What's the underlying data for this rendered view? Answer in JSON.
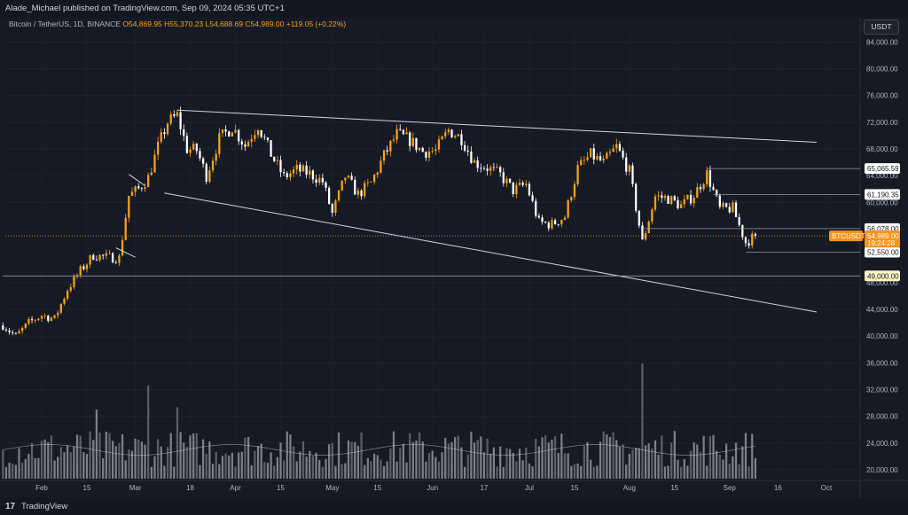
{
  "header": {
    "publisher": "Alade_Michael published on TradingView.com, Sep 09, 2024 05:35 UTC+1"
  },
  "legend": {
    "symbol": "Bitcoin / TetherUS, 1D, BINANCE",
    "open": "O54,869.95",
    "high": "H55,370.23",
    "low": "L54,688.69",
    "close": "C54,989.00",
    "change": "+119.05 (+0.22%)"
  },
  "currency": "USDT",
  "footer": {
    "brand": "TradingView",
    "logo": "17"
  },
  "colors": {
    "background": "#161a25",
    "up": "#f7a21b",
    "down": "#ffffff",
    "trendline": "#d1d4dc",
    "current_price_line": "#f7a21b"
  },
  "chart_data": {
    "type": "candlestick",
    "ylim": [
      18000,
      86000
    ],
    "y_ticks": [
      "84,000.00",
      "80,000.00",
      "76,000.00",
      "72,000.00",
      "68,000.00",
      "64,000.00",
      "60,000.00",
      "48,000.00",
      "44,000.00",
      "40,000.00",
      "36,000.00",
      "32,000.00",
      "28,000.00",
      "24,000.00",
      "20,000.00"
    ],
    "x_ticks": [
      {
        "label": "Feb",
        "date": "2024-02-01"
      },
      {
        "label": "15",
        "date": "2024-02-15"
      },
      {
        "label": "Mar",
        "date": "2024-03-01"
      },
      {
        "label": "18",
        "date": "2024-03-18"
      },
      {
        "label": "Apr",
        "date": "2024-04-01"
      },
      {
        "label": "15",
        "date": "2024-04-15"
      },
      {
        "label": "May",
        "date": "2024-05-01"
      },
      {
        "label": "15",
        "date": "2024-05-15"
      },
      {
        "label": "Jun",
        "date": "2024-06-01"
      },
      {
        "label": "17",
        "date": "2024-06-17"
      },
      {
        "label": "Jul",
        "date": "2024-07-01"
      },
      {
        "label": "15",
        "date": "2024-07-15"
      },
      {
        "label": "Aug",
        "date": "2024-08-01"
      },
      {
        "label": "15",
        "date": "2024-08-15"
      },
      {
        "label": "Sep",
        "date": "2024-09-01"
      },
      {
        "label": "16",
        "date": "2024-09-16"
      },
      {
        "label": "Oct",
        "date": "2024-10-01"
      }
    ],
    "price_series": [
      {
        "date": "2024-01-20",
        "close": 41600
      },
      {
        "date": "2024-01-24",
        "close": 40000
      },
      {
        "date": "2024-01-28",
        "close": 42000
      },
      {
        "date": "2024-02-01",
        "close": 43100
      },
      {
        "date": "2024-02-05",
        "close": 42600
      },
      {
        "date": "2024-02-09",
        "close": 47000
      },
      {
        "date": "2024-02-13",
        "close": 49800
      },
      {
        "date": "2024-02-17",
        "close": 52100
      },
      {
        "date": "2024-02-21",
        "close": 51800
      },
      {
        "date": "2024-02-25",
        "close": 51700
      },
      {
        "date": "2024-02-28",
        "close": 61000
      },
      {
        "date": "2024-03-02",
        "close": 62000
      },
      {
        "date": "2024-03-05",
        "close": 63700
      },
      {
        "date": "2024-03-08",
        "close": 68300
      },
      {
        "date": "2024-03-11",
        "close": 72000
      },
      {
        "date": "2024-03-14",
        "close": 73000
      },
      {
        "date": "2024-03-17",
        "close": 68000
      },
      {
        "date": "2024-03-20",
        "close": 67800
      },
      {
        "date": "2024-03-23",
        "close": 64000
      },
      {
        "date": "2024-03-27",
        "close": 69500
      },
      {
        "date": "2024-03-31",
        "close": 71300
      },
      {
        "date": "2024-04-04",
        "close": 68500
      },
      {
        "date": "2024-04-08",
        "close": 71600
      },
      {
        "date": "2024-04-12",
        "close": 67200
      },
      {
        "date": "2024-04-16",
        "close": 63800
      },
      {
        "date": "2024-04-20",
        "close": 64900
      },
      {
        "date": "2024-04-24",
        "close": 64300
      },
      {
        "date": "2024-04-28",
        "close": 63100
      },
      {
        "date": "2024-05-01",
        "close": 58300
      },
      {
        "date": "2024-05-05",
        "close": 63900
      },
      {
        "date": "2024-05-09",
        "close": 61200
      },
      {
        "date": "2024-05-13",
        "close": 62900
      },
      {
        "date": "2024-05-17",
        "close": 67000
      },
      {
        "date": "2024-05-21",
        "close": 70200
      },
      {
        "date": "2024-05-25",
        "close": 69300
      },
      {
        "date": "2024-05-29",
        "close": 67600
      },
      {
        "date": "2024-06-02",
        "close": 67700
      },
      {
        "date": "2024-06-06",
        "close": 70800
      },
      {
        "date": "2024-06-10",
        "close": 69600
      },
      {
        "date": "2024-06-14",
        "close": 66000
      },
      {
        "date": "2024-06-18",
        "close": 65200
      },
      {
        "date": "2024-06-22",
        "close": 64100
      },
      {
        "date": "2024-06-26",
        "close": 61800
      },
      {
        "date": "2024-06-30",
        "close": 62700
      },
      {
        "date": "2024-07-04",
        "close": 57000
      },
      {
        "date": "2024-07-08",
        "close": 56700
      },
      {
        "date": "2024-07-12",
        "close": 57900
      },
      {
        "date": "2024-07-16",
        "close": 65100
      },
      {
        "date": "2024-07-20",
        "close": 67100
      },
      {
        "date": "2024-07-24",
        "close": 65900
      },
      {
        "date": "2024-07-28",
        "close": 68300
      },
      {
        "date": "2024-08-01",
        "close": 64600
      },
      {
        "date": "2024-08-05",
        "close": 54000
      },
      {
        "date": "2024-08-09",
        "close": 60900
      },
      {
        "date": "2024-08-13",
        "close": 60600
      },
      {
        "date": "2024-08-17",
        "close": 59500
      },
      {
        "date": "2024-08-21",
        "close": 61100
      },
      {
        "date": "2024-08-25",
        "close": 64300
      },
      {
        "date": "2024-08-29",
        "close": 59000
      },
      {
        "date": "2024-09-02",
        "close": 59100
      },
      {
        "date": "2024-09-06",
        "close": 54000
      },
      {
        "date": "2024-09-09",
        "close": 54989
      }
    ],
    "trendlines": [
      {
        "from": {
          "date": "2024-03-14",
          "price": 73800
        },
        "to": {
          "date": "2024-09-28",
          "price": 69000
        }
      },
      {
        "from": {
          "date": "2024-03-10",
          "price": 61400
        },
        "to": {
          "date": "2024-09-28",
          "price": 43600
        }
      },
      {
        "from": {
          "date": "2024-02-24",
          "price": 53200
        },
        "to": {
          "date": "2024-03-01",
          "price": 51800
        }
      },
      {
        "from": {
          "date": "2024-02-28",
          "price": 64200
        },
        "to": {
          "date": "2024-03-04",
          "price": 62500
        }
      }
    ],
    "horizontal_levels": [
      {
        "price": 65065.59,
        "label": "65,065.59",
        "from": "2024-08-25"
      },
      {
        "price": 61190.35,
        "label": "61,190.35",
        "from": "2024-08-27"
      },
      {
        "price": 56078.0,
        "label": "56,078.00",
        "from": "2024-08-05"
      },
      {
        "price": 52550.0,
        "label": "52,550.00",
        "from": "2024-09-06"
      },
      {
        "price": 49000.0,
        "label": "49,000.00",
        "from": "2024-01-20"
      }
    ],
    "current_price": {
      "price": 54989.0,
      "symbol": "BTCUSDT",
      "value": "54,989.00",
      "countdown": "19:24:28"
    },
    "volume_spikes": [
      {
        "date": "2024-03-05",
        "level": 0.81
      },
      {
        "date": "2024-02-18",
        "level": 0.6
      },
      {
        "date": "2024-03-14",
        "level": 0.62
      },
      {
        "date": "2024-08-05",
        "level": 1.0
      }
    ]
  }
}
